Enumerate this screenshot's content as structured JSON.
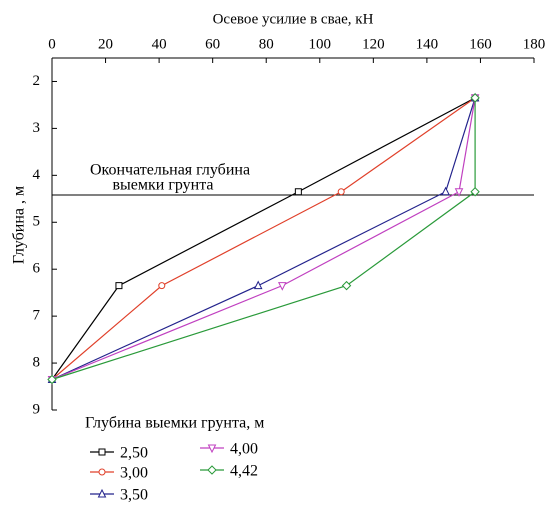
{
  "chart_data": {
    "type": "line",
    "xlabel": "Осевое усилие в свае, кН",
    "ylabel": "Глубина , м",
    "xlim": [
      0,
      180
    ],
    "xticks": [
      0,
      20,
      40,
      60,
      80,
      100,
      120,
      140,
      160,
      180
    ],
    "ylim": [
      1.5,
      9
    ],
    "yticks": [
      2,
      3,
      4,
      5,
      6,
      7,
      8,
      9
    ],
    "y_reversed": true,
    "reference_line": 4.42,
    "annotation": [
      "Окончательная глубина",
      "выемки грунта"
    ],
    "legend_title": "Глубина выемки грунта, м",
    "series": [
      {
        "name": "2,50",
        "color": "#000000",
        "marker": "square",
        "x": [
          0,
          25,
          92,
          158
        ],
        "values": [
          8.35,
          6.35,
          4.35,
          2.35
        ]
      },
      {
        "name": "3,00",
        "color": "#e0402a",
        "marker": "circle",
        "x": [
          0,
          41,
          108,
          158
        ],
        "values": [
          8.35,
          6.35,
          4.35,
          2.35
        ]
      },
      {
        "name": "3,50",
        "color": "#23238c",
        "marker": "triangle-up",
        "x": [
          0,
          77,
          147,
          158
        ],
        "values": [
          8.35,
          6.35,
          4.35,
          2.35
        ]
      },
      {
        "name": "4,00",
        "color": "#c040c0",
        "marker": "triangle-down",
        "x": [
          0,
          86,
          152,
          158
        ],
        "values": [
          8.35,
          6.35,
          4.35,
          2.35
        ]
      },
      {
        "name": "4,42",
        "color": "#2a9a3a",
        "marker": "diamond",
        "x": [
          0,
          110,
          158,
          158
        ],
        "values": [
          8.35,
          6.35,
          4.35,
          2.35
        ]
      }
    ]
  }
}
